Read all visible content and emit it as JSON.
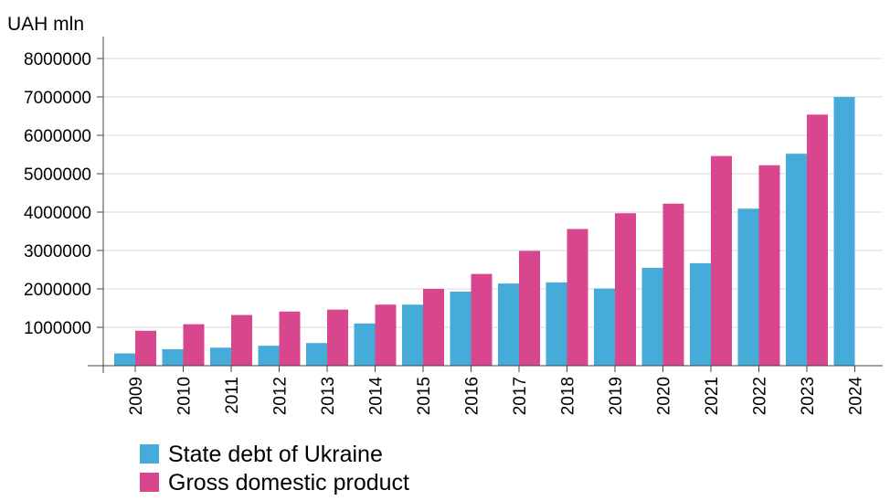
{
  "chart_data": {
    "type": "bar",
    "title": "",
    "xlabel": "",
    "ylabel": "UAH mln",
    "ylim": [
      0,
      8500000
    ],
    "yticks": [
      "1000000",
      "2000000",
      "3000000",
      "4000000",
      "5000000",
      "6000000",
      "7000000",
      "8000000"
    ],
    "ytick_values": [
      1000000,
      2000000,
      3000000,
      4000000,
      5000000,
      6000000,
      7000000,
      8000000
    ],
    "categories": [
      "2009",
      "2010",
      "2011",
      "2012",
      "2013",
      "2014",
      "2015",
      "2016",
      "2017",
      "2018",
      "2019",
      "2020",
      "2021",
      "2022",
      "2023",
      "2024"
    ],
    "series": [
      {
        "name": "State debt of Ukraine",
        "color": "#45acd9",
        "values": [
          320000,
          430000,
          470000,
          520000,
          590000,
          1100000,
          1590000,
          1930000,
          2140000,
          2170000,
          2010000,
          2550000,
          2670000,
          4090000,
          5520000,
          7000000
        ]
      },
      {
        "name": "Gross domestic product",
        "color": "#d8468e",
        "values": [
          910000,
          1080000,
          1320000,
          1410000,
          1460000,
          1590000,
          2000000,
          2390000,
          2990000,
          3560000,
          3970000,
          4220000,
          5460000,
          5220000,
          6540000,
          null
        ]
      }
    ],
    "grid": true,
    "legend_position": "bottom-left"
  }
}
